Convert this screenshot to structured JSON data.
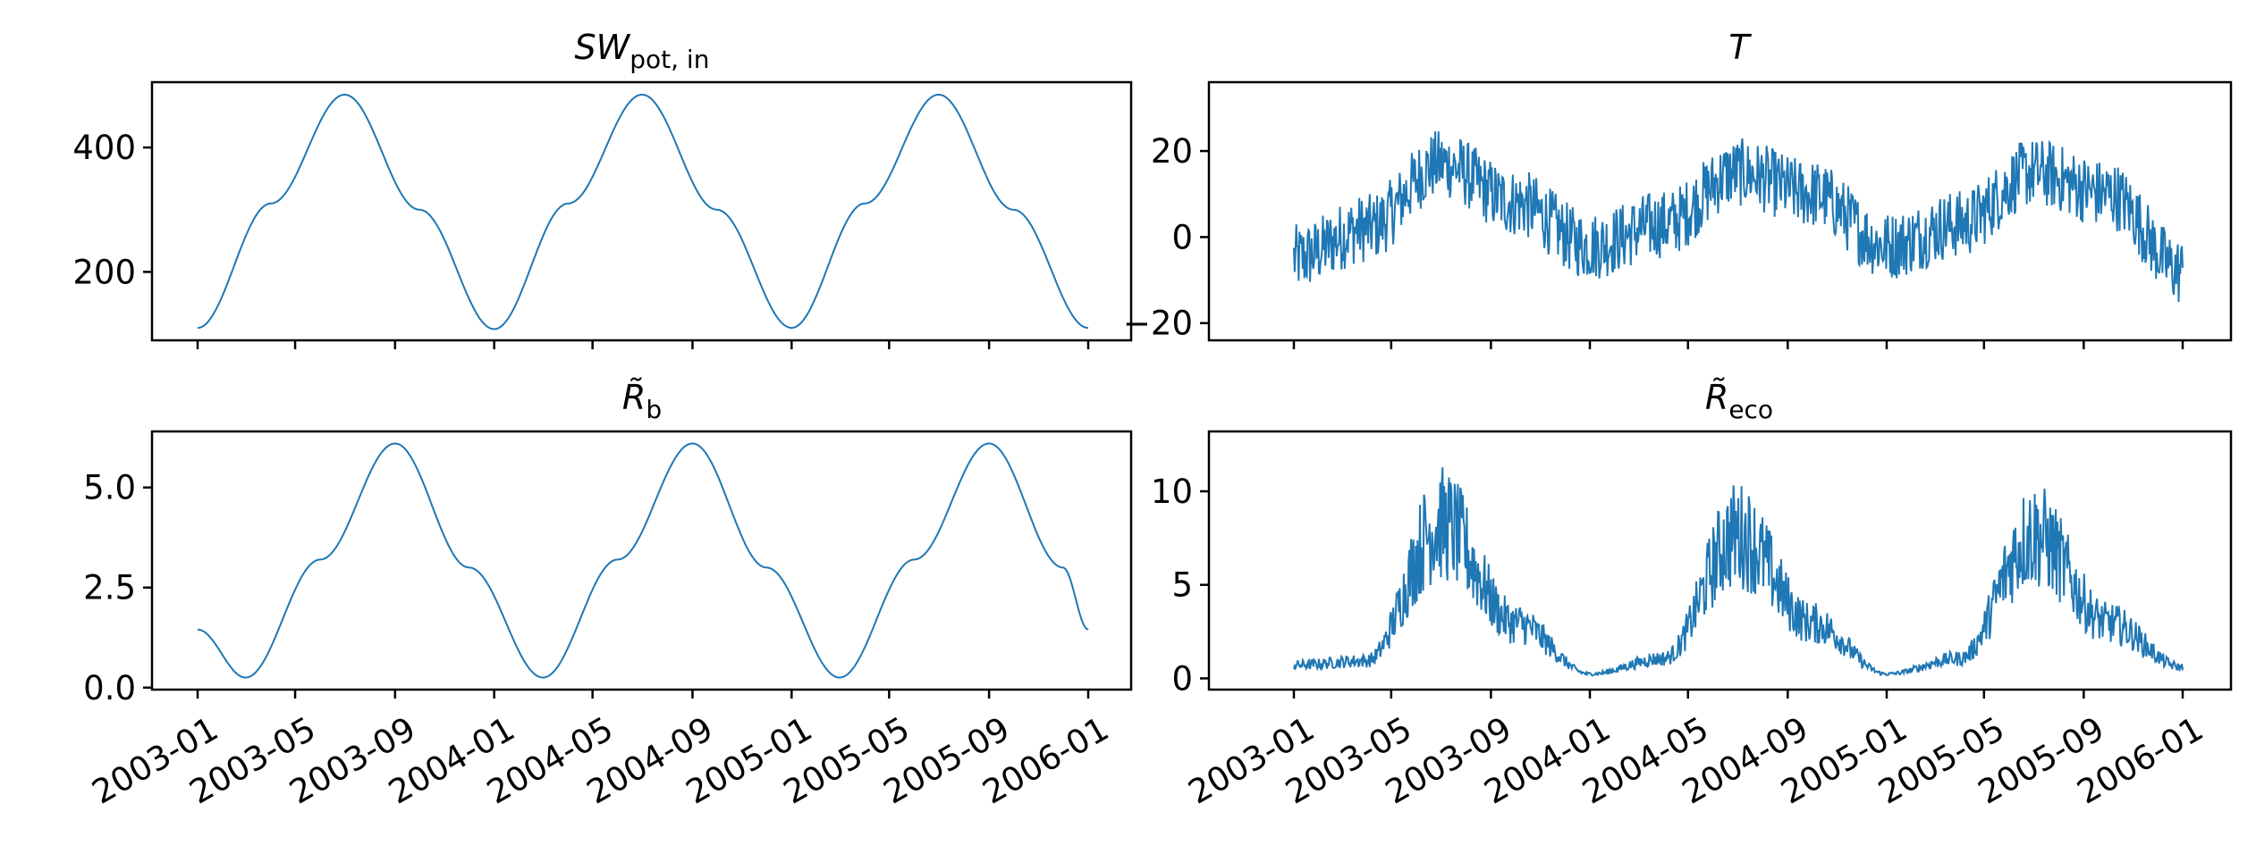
{
  "chart_data": [
    {
      "type": "line",
      "title": "SW_pot,in",
      "title_parts": {
        "base": "SW",
        "sub": "pot, in",
        "style": "italic"
      },
      "xlim": [
        "2003-01-01",
        "2006-01-01"
      ],
      "ylim": [
        90,
        505
      ],
      "yticks": [
        200,
        400
      ],
      "ytick_labels": [
        "200",
        "400"
      ],
      "xtick_labels_shown": false,
      "series": [
        {
          "x": [
            "2003-01-01",
            "2003-04-01",
            "2003-07-01",
            "2003-10-01",
            "2004-01-01",
            "2004-04-01",
            "2004-07-01",
            "2004-10-01",
            "2005-01-01",
            "2005-04-01",
            "2005-07-01",
            "2005-10-01",
            "2006-01-01"
          ],
          "y": [
            110,
            310,
            485,
            300,
            108,
            310,
            485,
            300,
            110,
            310,
            485,
            300,
            110
          ]
        }
      ],
      "color": "#1f77b4"
    },
    {
      "type": "line",
      "title": "T",
      "title_parts": {
        "base": "T",
        "sub": "",
        "style": "italic"
      },
      "xlim": [
        "2003-01-01",
        "2006-01-01"
      ],
      "ylim": [
        -24,
        36
      ],
      "yticks": [
        -20,
        0,
        20
      ],
      "ytick_labels": [
        "−20",
        "0",
        "20"
      ],
      "xtick_labels_shown": false,
      "series": [
        {
          "x": [
            "2003-01-01",
            "2003-04-01",
            "2003-07-01",
            "2003-10-01",
            "2004-01-01",
            "2004-04-01",
            "2004-07-01",
            "2004-10-01",
            "2005-01-01",
            "2005-04-01",
            "2005-07-01",
            "2005-10-01",
            "2006-01-01"
          ],
          "y": [
            -5,
            2,
            17,
            8,
            -2,
            3,
            15,
            10,
            -2,
            3,
            15,
            10,
            -8
          ]
        }
      ],
      "noisy": true,
      "color": "#1f77b4"
    },
    {
      "type": "line",
      "title": "R̃_b",
      "title_parts": {
        "base": "R̃",
        "sub": "b",
        "style": "italic"
      },
      "xlim": [
        "2003-01-01",
        "2006-01-01"
      ],
      "ylim": [
        -0.05,
        6.4
      ],
      "yticks": [
        0.0,
        2.5,
        5.0
      ],
      "ytick_labels": [
        "0.0",
        "2.5",
        "5.0"
      ],
      "xtick_labels_shown": true,
      "series": [
        {
          "x": [
            "2003-01-01",
            "2003-03-01",
            "2003-06-01",
            "2003-09-01",
            "2003-12-01",
            "2004-03-01",
            "2004-06-01",
            "2004-09-01",
            "2004-12-01",
            "2005-03-01",
            "2005-06-01",
            "2005-09-01",
            "2005-12-01",
            "2006-01-01"
          ],
          "y": [
            1.45,
            0.25,
            3.2,
            6.1,
            3.0,
            0.25,
            3.2,
            6.1,
            3.0,
            0.25,
            3.2,
            6.1,
            3.0,
            1.45
          ]
        }
      ],
      "color": "#1f77b4"
    },
    {
      "type": "line",
      "title": "R̃_eco",
      "title_parts": {
        "base": "R̃",
        "sub": "eco",
        "style": "italic"
      },
      "xlim": [
        "2003-01-01",
        "2006-01-01"
      ],
      "ylim": [
        -0.6,
        13.2
      ],
      "yticks": [
        0,
        5,
        10
      ],
      "ytick_labels": [
        "0",
        "5",
        "10"
      ],
      "xtick_labels_shown": true,
      "series": [
        {
          "x": [
            "2003-01-01",
            "2003-04-01",
            "2003-07-01",
            "2003-10-01",
            "2004-01-01",
            "2004-04-01",
            "2004-07-01",
            "2004-10-01",
            "2005-01-01",
            "2005-04-01",
            "2005-07-01",
            "2005-10-01",
            "2006-01-01"
          ],
          "y": [
            0.6,
            0.8,
            7,
            2.5,
            0.2,
            0.9,
            6.5,
            2.5,
            0.2,
            0.9,
            6.5,
            2.5,
            0.5
          ]
        }
      ],
      "noisy": true,
      "color": "#1f77b4"
    }
  ],
  "x_axis": {
    "tick_labels": [
      "2003-01",
      "2003-05",
      "2003-09",
      "2004-01",
      "2004-05",
      "2004-09",
      "2005-01",
      "2005-05",
      "2005-09",
      "2006-01"
    ]
  }
}
